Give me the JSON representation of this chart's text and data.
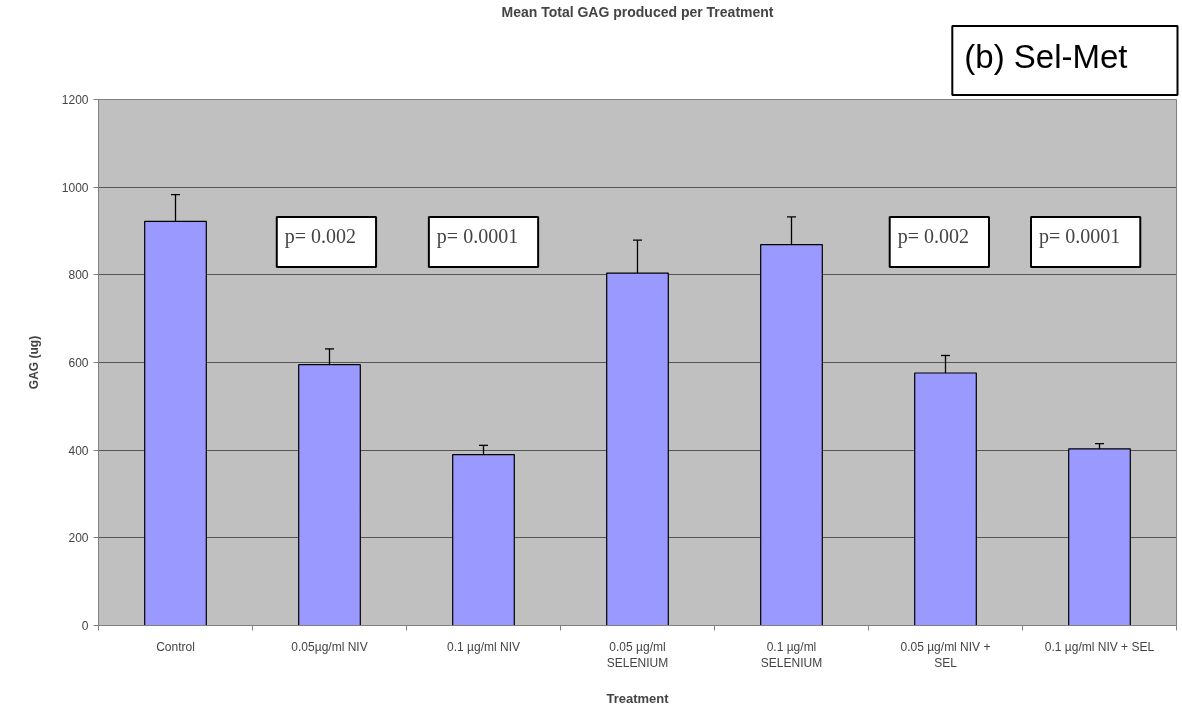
{
  "chart_data": {
    "type": "bar",
    "title": "Mean Total GAG produced per Treatment",
    "xlabel": "Treatment",
    "ylabel": "GAG (ug)",
    "categories": [
      "Control",
      "0.05µg/ml NIV",
      "0.1 µg/ml NIV",
      "0.05 µg/ml\nSELENIUM",
      "0.1 µg/ml\nSELENIUM",
      "0.05 µg/ml NIV +\nSEL",
      "0.1 µg/ml NIV + SEL"
    ],
    "values": [
      922,
      595,
      390,
      804,
      869,
      576,
      403
    ],
    "errors": [
      61,
      36,
      21,
      75,
      63,
      40,
      12
    ],
    "color": "#9999ff",
    "ylim": [
      0,
      1200
    ],
    "yticks": [
      0,
      200,
      400,
      600,
      800,
      1000,
      1200
    ],
    "grid": "y",
    "annotations": [
      "(b) Sel-Met",
      "p= 0.002",
      "p= 0.0001",
      "p= 0.002",
      "p= 0.0001"
    ]
  }
}
